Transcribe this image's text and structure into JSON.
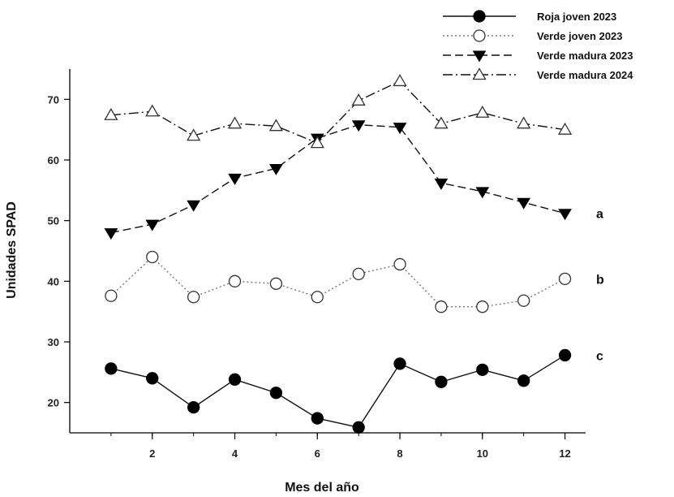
{
  "chart_data": {
    "type": "line",
    "xlabel": "Mes del año",
    "ylabel": "Unidades SPAD",
    "xlim": [
      0,
      12.5
    ],
    "ylim": [
      15,
      75
    ],
    "xticks": [
      2,
      4,
      6,
      8,
      10,
      12
    ],
    "yticks": [
      20,
      30,
      40,
      50,
      60,
      70
    ],
    "grid": false,
    "legend_position": "top-right",
    "x": [
      1,
      2,
      3,
      4,
      5,
      6,
      7,
      8,
      9,
      10,
      11,
      12
    ],
    "series": [
      {
        "name": "Roja joven 2023",
        "line_style": "solid",
        "marker": "filled-circle",
        "values": [
          25.6,
          24.0,
          19.2,
          23.8,
          21.6,
          17.4,
          15.9,
          26.4,
          23.4,
          25.4,
          23.6,
          27.8
        ],
        "group_label": "c"
      },
      {
        "name": "Verde joven 2023",
        "line_style": "dotted",
        "marker": "open-circle",
        "values": [
          37.6,
          44.0,
          37.4,
          40.0,
          39.6,
          37.4,
          41.2,
          42.8,
          35.8,
          35.8,
          36.8,
          40.4
        ],
        "group_label": "b"
      },
      {
        "name": "Verde madura 2023",
        "line_style": "dashed",
        "marker": "filled-triangle-down",
        "values": [
          48.0,
          49.4,
          52.6,
          57.0,
          58.6,
          63.6,
          65.8,
          65.4,
          56.2,
          54.8,
          53.0,
          51.2
        ],
        "group_label": "a"
      },
      {
        "name": "Verde madura 2024",
        "line_style": "dash-dot",
        "marker": "open-triangle-up",
        "values": [
          67.4,
          68.0,
          64.0,
          66.0,
          65.6,
          62.8,
          69.8,
          73.0,
          66.0,
          67.8,
          66.0,
          65.0
        ],
        "group_label": ""
      }
    ]
  }
}
